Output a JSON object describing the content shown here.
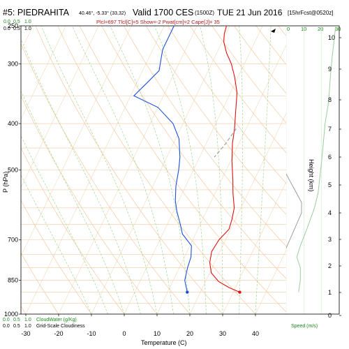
{
  "header": {
    "station": "#5: PIEDRAHITA",
    "coords": "40.46°, -5.33° (33,32)",
    "valid": "Valid 1700 CES",
    "utc": "(1500Z)",
    "date": "TUE 21 Jun 2016",
    "fcst": "[15hrFcst@0520z]",
    "params": "Plcl=697 Tlcl[C]=5 Show=-2 Pwat[cm]=2 Cape[J]= 35"
  },
  "top_scale": {
    "labels": [
      "0.0",
      "0.5",
      "1.0"
    ]
  },
  "top_speed": {
    "labels": [
      "0",
      "10",
      "20",
      "30"
    ]
  },
  "bottom_legend": {
    "row1_values": [
      "0.0",
      "0.5",
      "1.0"
    ],
    "row1_label": "CloudWater (g/Kg)",
    "row2_values": [
      "0.0",
      "0.5",
      "1.0"
    ],
    "row2_label": "Grid-Scale Cloudiness",
    "speed_label": "Speed (m/s)"
  },
  "colors": {
    "temperature": "#e01010",
    "dewpoint": "#1c4fd8",
    "dry_adiabat": "#f4c8a0",
    "moist_adiabat": "#9fd88f",
    "isotherm": "#f2d7b6",
    "isobar": "#f4c8a0",
    "param_text": "#b01818",
    "cloud_text": "#1a8a1a",
    "wind": "#444444"
  },
  "chart_data": {
    "type": "line",
    "title": "#5: PIEDRAHITA",
    "xlabel": "Temperature (C)",
    "ylabel": "P (hPa)",
    "y2label": "Height (km)",
    "xlim": [
      -35,
      45
    ],
    "ylim": [
      1000,
      250
    ],
    "x_ticks": [
      -30,
      -20,
      -10,
      0,
      10,
      20,
      30,
      40
    ],
    "p_ticks": [
      1000,
      850,
      700,
      500,
      400,
      300,
      250
    ],
    "height_ticks": [
      0,
      1,
      2,
      3,
      4,
      5,
      6,
      7,
      8,
      9,
      10
    ],
    "series": [
      {
        "name": "Temperature",
        "points": [
          [
            32,
            900
          ],
          [
            28,
            880
          ],
          [
            24,
            855
          ],
          [
            20.5,
            820
          ],
          [
            18.5,
            780
          ],
          [
            17.5,
            740
          ],
          [
            18,
            700
          ],
          [
            19.5,
            665
          ],
          [
            19,
            635
          ],
          [
            18,
            600
          ],
          [
            15.5,
            560
          ],
          [
            13.5,
            525
          ],
          [
            10.5,
            480
          ],
          [
            8,
            440
          ],
          [
            6.5,
            410
          ],
          [
            4.5,
            380
          ],
          [
            2,
            345
          ],
          [
            -1,
            320
          ],
          [
            -4,
            300
          ],
          [
            -7,
            285
          ],
          [
            -9.5,
            270
          ],
          [
            -10.5,
            260
          ],
          [
            -11,
            250
          ]
        ]
      },
      {
        "name": "Dewpoint",
        "points": [
          [
            16,
            900
          ],
          [
            13.5,
            850
          ],
          [
            12.5,
            800
          ],
          [
            12,
            760
          ],
          [
            10.5,
            720
          ],
          [
            6,
            680
          ],
          [
            4,
            650
          ],
          [
            1,
            610
          ],
          [
            -1,
            580
          ],
          [
            -3,
            540
          ],
          [
            -4.5,
            500
          ],
          [
            -6,
            470
          ],
          [
            -9,
            430
          ],
          [
            -13,
            400
          ],
          [
            -20,
            370
          ],
          [
            -29,
            350
          ],
          [
            -27,
            330
          ],
          [
            -25,
            310
          ],
          [
            -26,
            295
          ],
          [
            -27,
            280
          ],
          [
            -27,
            265
          ],
          [
            -27,
            250
          ]
        ]
      },
      {
        "name": "Parcel",
        "points": [
          [
            7,
            410
          ],
          [
            6,
            440
          ],
          [
            4.5,
            470
          ]
        ]
      }
    ],
    "surface_points": [
      {
        "name": "surface-temperature",
        "t": 32,
        "p": 900
      },
      {
        "name": "surface-dewpoint",
        "t": 16,
        "p": 900
      }
    ],
    "wind_speed": {
      "xlim": [
        0,
        30
      ],
      "points": [
        [
          7,
          900
        ],
        [
          8,
          850
        ],
        [
          8,
          800
        ],
        [
          6,
          760
        ],
        [
          8,
          720
        ],
        [
          12,
          660
        ],
        [
          16,
          600
        ],
        [
          18,
          560
        ],
        [
          19,
          520
        ],
        [
          20,
          480
        ],
        [
          21,
          440
        ],
        [
          22,
          400
        ],
        [
          24,
          360
        ],
        [
          25,
          320
        ],
        [
          26,
          290
        ],
        [
          27,
          270
        ],
        [
          28,
          250
        ]
      ]
    }
  }
}
